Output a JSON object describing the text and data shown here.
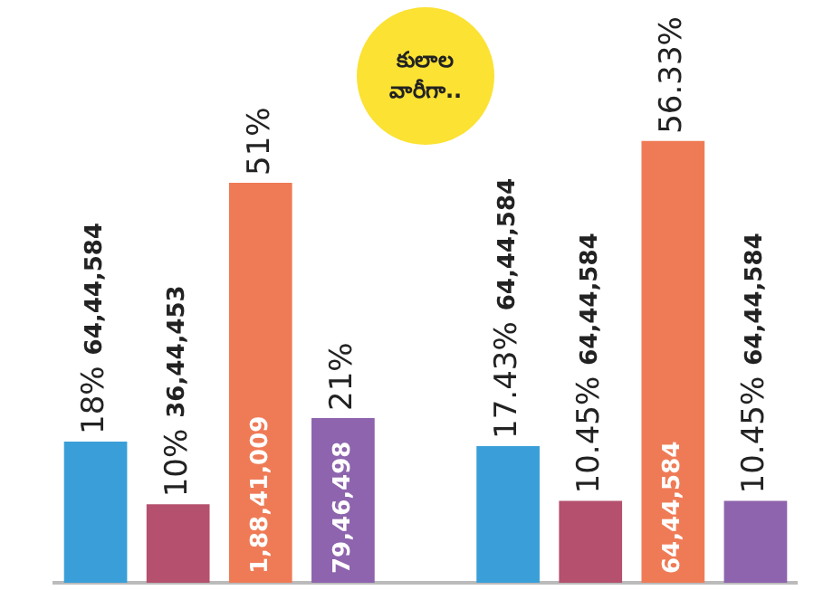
{
  "chart_data": {
    "type": "bar",
    "title": "కులాల వారీగా..",
    "categories": [
      "64,44,584",
      "36,44,453",
      "1,88,41,009",
      "79,46,498",
      null,
      "64,44,584",
      "64,44,584",
      "64,44,584",
      "64,44,584"
    ],
    "values": [
      18,
      10,
      51,
      21,
      null,
      17.43,
      10.45,
      56.33,
      10.45
    ],
    "colors": [
      "#3a9fd8",
      "#b5506e",
      "#ef7b56",
      "#8d64ad",
      "#ffffff",
      "#3a9fd8",
      "#b5506e",
      "#ef7b56",
      "#8d64ad"
    ],
    "value_labels": [
      "18%",
      "10%",
      "51%",
      "21%",
      null,
      "17.43%",
      "10.45%",
      "56.33%",
      "10.45%"
    ]
  }
}
